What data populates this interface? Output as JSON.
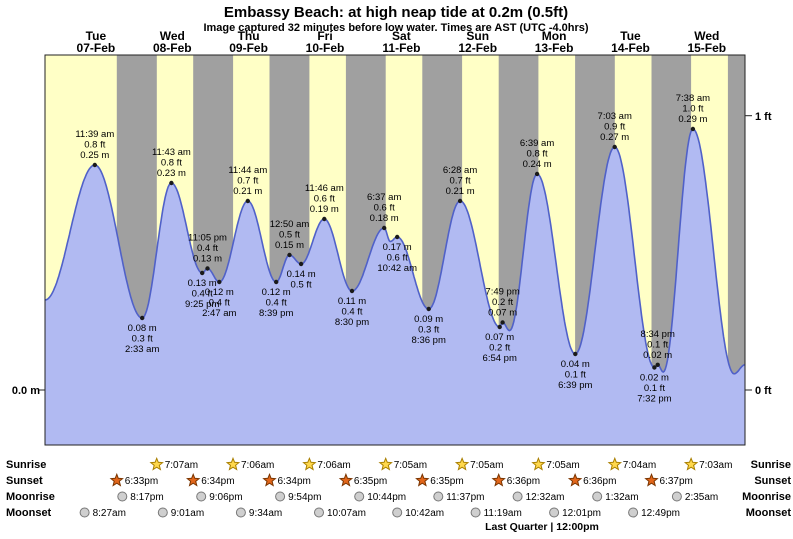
{
  "header": {
    "title": "Embassy Beach: at high  neap tide at 0.2m (0.5ft)",
    "subtitle": "Image captured 32 minutes before low water. Times are AST (UTC -4.0hrs)"
  },
  "chart_data": {
    "type": "area",
    "title": "Embassy Beach: at high  neap tide at 0.2m (0.5ft)",
    "y_axis": {
      "left": "0.0 m",
      "right_top": "1 ft",
      "right_bottom": "0 ft"
    },
    "days": [
      {
        "dow": "Tue",
        "date": "07-Feb"
      },
      {
        "dow": "Wed",
        "date": "08-Feb"
      },
      {
        "dow": "Thu",
        "date": "09-Feb"
      },
      {
        "dow": "Fri",
        "date": "10-Feb"
      },
      {
        "dow": "Sat",
        "date": "11-Feb"
      },
      {
        "dow": "Sun",
        "date": "12-Feb"
      },
      {
        "dow": "Mon",
        "date": "13-Feb"
      },
      {
        "dow": "Tue",
        "date": "14-Feb"
      },
      {
        "dow": "Wed",
        "date": "15-Feb"
      }
    ],
    "tide_events": [
      {
        "d": 0,
        "pos": "above",
        "h": 0.25,
        "lines": [
          "11:39 am",
          "0.8 ft",
          "0.25 m"
        ]
      },
      {
        "d": 1,
        "pos": "below",
        "h": 0.08,
        "lines": [
          "0.08 m",
          "0.3 ft",
          "2:33 am"
        ]
      },
      {
        "d": 1,
        "pos": "above",
        "h": 0.23,
        "lines": [
          "11:43 am",
          "0.8 ft",
          "0.23 m"
        ]
      },
      {
        "d": 1,
        "pos": "below",
        "h": 0.13,
        "lines": [
          "0.13 m",
          "0.4 ft",
          "9:25 pm"
        ]
      },
      {
        "d": 1,
        "pos": "above",
        "h": 0.135,
        "lines": [
          "11:05 pm",
          "0.4 ft",
          "0.13 m"
        ]
      },
      {
        "d": 2,
        "pos": "below",
        "h": 0.12,
        "lines": [
          "0.12 m",
          "0.4 ft",
          "2:47 am"
        ]
      },
      {
        "d": 2,
        "pos": "above",
        "h": 0.21,
        "lines": [
          "11:44 am",
          "0.7 ft",
          "0.21 m"
        ]
      },
      {
        "d": 2,
        "pos": "below",
        "h": 0.12,
        "lines": [
          "0.12 m",
          "0.4 ft",
          "8:39 pm"
        ]
      },
      {
        "d": 3,
        "pos": "above",
        "h": 0.15,
        "lines": [
          "12:50 am",
          "0.5 ft",
          "0.15 m"
        ]
      },
      {
        "d": 3,
        "pos": "below",
        "h": 0.14,
        "h24": 4.5,
        "lines": [
          "0.14 m",
          "0.5 ft"
        ]
      },
      {
        "d": 3,
        "pos": "above",
        "h": 0.19,
        "lines": [
          "11:46 am",
          "0.6 ft",
          "0.19 m"
        ]
      },
      {
        "d": 3,
        "pos": "below",
        "h": 0.11,
        "lines": [
          "0.11 m",
          "0.4 ft",
          "8:30 pm"
        ]
      },
      {
        "d": 4,
        "pos": "above",
        "h": 0.18,
        "lines": [
          "6:37 am",
          "0.6 ft",
          "0.18 m"
        ]
      },
      {
        "d": 4,
        "pos": "below",
        "h": 0.17,
        "lines": [
          "0.17 m",
          "0.6 ft",
          "10:42 am"
        ]
      },
      {
        "d": 4,
        "pos": "below",
        "h": 0.09,
        "lines": [
          "0.09 m",
          "0.3 ft",
          "8:36 pm"
        ]
      },
      {
        "d": 5,
        "pos": "above",
        "h": 0.21,
        "lines": [
          "6:28 am",
          "0.7 ft",
          "0.21 m"
        ]
      },
      {
        "d": 5,
        "pos": "below",
        "h": 0.07,
        "lines": [
          "0.07 m",
          "0.2 ft",
          "6:54 pm"
        ]
      },
      {
        "d": 5,
        "pos": "above",
        "h": 0.075,
        "lines": [
          "7:49 pm",
          "0.2 ft",
          "0.07 m"
        ]
      },
      {
        "d": 6,
        "pos": "above",
        "h": 0.24,
        "lines": [
          "6:39 am",
          "0.8 ft",
          "0.24 m"
        ]
      },
      {
        "d": 6,
        "pos": "below",
        "h": 0.04,
        "lines": [
          "0.04 m",
          "0.1 ft",
          "6:39 pm"
        ]
      },
      {
        "d": 7,
        "pos": "above",
        "h": 0.27,
        "lines": [
          "7:03 am",
          "0.9 ft",
          "0.27 m"
        ]
      },
      {
        "d": 7,
        "pos": "below",
        "h": 0.025,
        "lines": [
          "0.02 m",
          "0.1 ft",
          "7:32 pm"
        ]
      },
      {
        "d": 7,
        "pos": "above",
        "h": 0.028,
        "lines": [
          "8:34 pm",
          "0.1 ft",
          "0.02 m"
        ]
      },
      {
        "d": 8,
        "pos": "above",
        "h": 0.29,
        "lines": [
          "7:38 am",
          "1.0 ft",
          "0.29 m"
        ]
      }
    ],
    "curve_extra": [
      {
        "d": -1,
        "h24": 20.0,
        "h": 0.1
      },
      {
        "d": 4,
        "h24": 8.5,
        "h": 0.165
      },
      {
        "d": 5,
        "h24": 22.0,
        "h": 0.066
      },
      {
        "d": 7,
        "h24": 22.3,
        "h": 0.02
      },
      {
        "d": 8,
        "h24": 20.57,
        "h": 0.018
      },
      {
        "d": 8,
        "h24": 24.0,
        "h": 0.028
      }
    ]
  },
  "astro": {
    "rows": [
      {
        "key": "sunrise",
        "label": "Sunrise",
        "events": [
          {
            "d": 1,
            "time": "7:07am"
          },
          {
            "d": 2,
            "time": "7:06am"
          },
          {
            "d": 3,
            "time": "7:06am"
          },
          {
            "d": 4,
            "time": "7:05am"
          },
          {
            "d": 5,
            "time": "7:05am"
          },
          {
            "d": 6,
            "time": "7:05am"
          },
          {
            "d": 7,
            "time": "7:04am"
          },
          {
            "d": 8,
            "time": "7:03am"
          }
        ]
      },
      {
        "key": "sunset",
        "label": "Sunset",
        "events": [
          {
            "d": 0,
            "time": "6:33pm"
          },
          {
            "d": 1,
            "time": "6:34pm"
          },
          {
            "d": 2,
            "time": "6:34pm"
          },
          {
            "d": 3,
            "time": "6:35pm"
          },
          {
            "d": 4,
            "time": "6:35pm"
          },
          {
            "d": 5,
            "time": "6:36pm"
          },
          {
            "d": 6,
            "time": "6:36pm"
          },
          {
            "d": 7,
            "time": "6:37pm"
          }
        ]
      },
      {
        "key": "moonrise",
        "label": "Moonrise",
        "events": [
          {
            "d": 0,
            "time": "8:17pm"
          },
          {
            "d": 1,
            "time": "9:06pm"
          },
          {
            "d": 2,
            "time": "9:54pm"
          },
          {
            "d": 3,
            "time": "10:44pm"
          },
          {
            "d": 4,
            "time": "11:37pm"
          },
          {
            "d": 6,
            "time": "12:32am"
          },
          {
            "d": 7,
            "time": "1:32am"
          },
          {
            "d": 8,
            "time": "2:35am"
          }
        ]
      },
      {
        "key": "moonset",
        "label": "Moonset",
        "events": [
          {
            "d": 0,
            "time": "8:27am"
          },
          {
            "d": 1,
            "time": "9:01am"
          },
          {
            "d": 2,
            "time": "9:34am"
          },
          {
            "d": 3,
            "time": "10:07am"
          },
          {
            "d": 4,
            "time": "10:42am"
          },
          {
            "d": 5,
            "time": "11:19am"
          },
          {
            "d": 6,
            "time": "12:01pm"
          },
          {
            "d": 7,
            "time": "12:49pm"
          }
        ]
      }
    ],
    "moon_phase": "Last Quarter | 12:00pm"
  },
  "colors": {
    "day_bg": "#ffffc6",
    "night_bg": "#a0a0a0",
    "curve_fill": "#b1baf2",
    "curve_stroke": "#5061c8",
    "day_label": "#ff0000",
    "dot": "#1a1a1a",
    "sunrise_star": "#ffd84d",
    "sunrise_star_edge": "#a97f00",
    "sunset_star": "#e2661a",
    "sunset_star_edge": "#7a3500",
    "moon_fill": "#cfcfcf",
    "moon_edge": "#777777"
  }
}
